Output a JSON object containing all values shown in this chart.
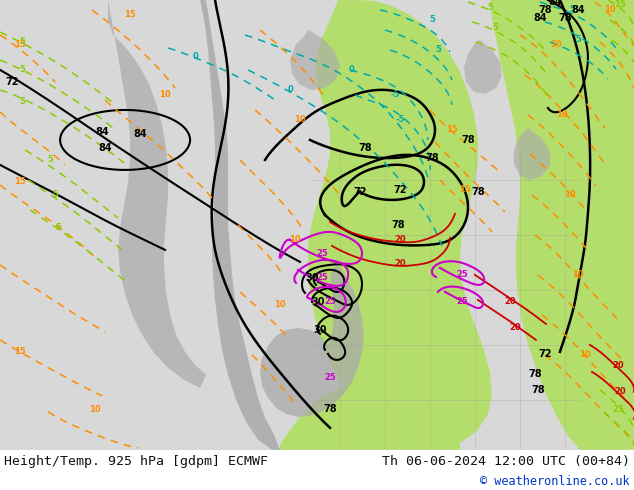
{
  "title_left": "Height/Temp. 925 hPa [gdpm] ECMWF",
  "title_right": "Th 06-06-2024 12:00 UTC (00+84)",
  "copyright": "© weatheronline.co.uk",
  "bg_color": "#d8d8d8",
  "title_fontsize": 9.5,
  "copyright_fontsize": 8.5,
  "copyright_color": "#0033cc",
  "title_color": "#111111",
  "fig_width": 6.34,
  "fig_height": 4.9,
  "dpi": 100
}
